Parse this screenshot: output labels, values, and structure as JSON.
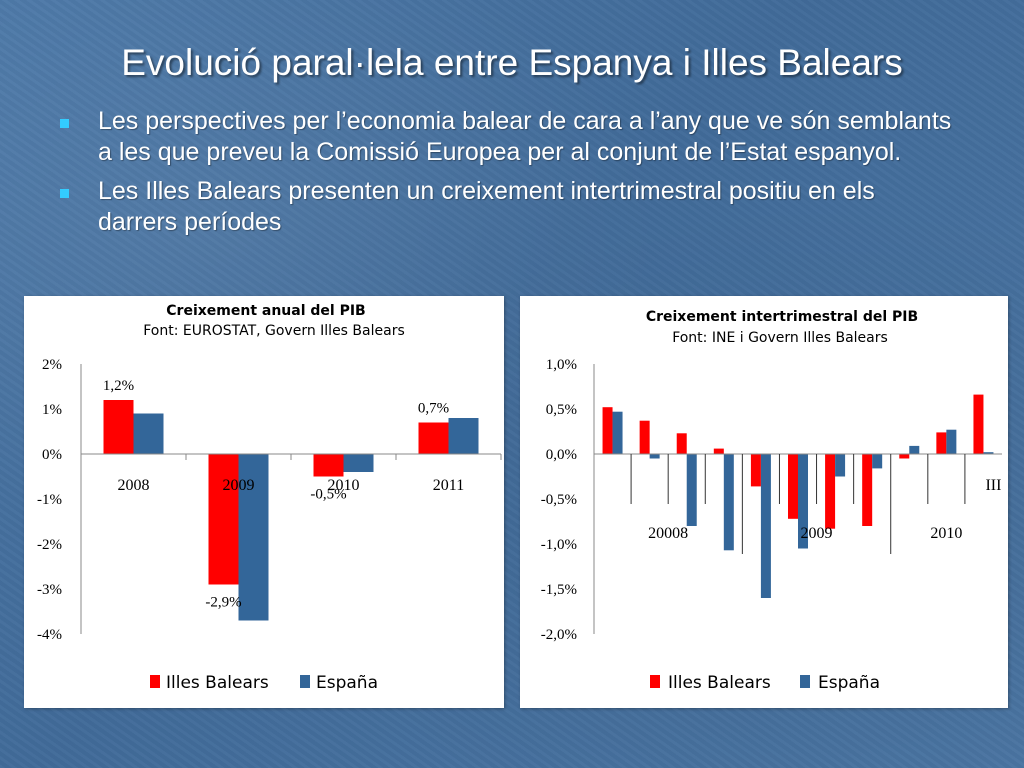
{
  "slide": {
    "title": "Evolució paral·lela entre Espanya i Illes Balears",
    "bullets": [
      "Les perspectives per l’economia balear de cara a l’any que ve són semblants a les que preveu la Comissió Europea per al conjunt de l’Estat espanyol.",
      "Les Illes Balears presenten un creixement intertrimestral positiu en els darrers períodes"
    ],
    "colors": {
      "background": "#4a74a2",
      "text": "#ffffff",
      "bullet": "#33ccff"
    }
  },
  "chart_data": [
    {
      "type": "bar",
      "title": "Creixement anual del PIB",
      "subtitle": "Font: EUROSTAT, Govern Illes Balears",
      "categories": [
        "2008",
        "2009",
        "2010",
        "2011"
      ],
      "series": [
        {
          "name": "Illes Balears",
          "color": "#ff0000",
          "values": [
            1.2,
            -2.9,
            -0.5,
            0.7
          ]
        },
        {
          "name": "España",
          "color": "#336699",
          "values": [
            0.9,
            -3.7,
            -0.4,
            0.8
          ]
        }
      ],
      "data_labels": [
        {
          "text": "1,2%",
          "category": "2008",
          "series": "Illes Balears"
        },
        {
          "text": "-2,9%",
          "category": "2009",
          "series": "Illes Balears"
        },
        {
          "text": "-0,5%",
          "category": "2010",
          "series": "Illes Balears"
        },
        {
          "text": "0,7%",
          "category": "2011",
          "series": "Illes Balears"
        }
      ],
      "ylim": [
        -4,
        2
      ],
      "yticks": [
        2,
        1,
        0,
        -1,
        -2,
        -3,
        -4
      ],
      "ytick_labels": [
        "2%",
        "1%",
        "0%",
        "-1%",
        "-2%",
        "-3%",
        "-4%"
      ],
      "legend_position": "bottom",
      "grid": false
    },
    {
      "type": "bar",
      "title": "Creixement intertrimestral del PIB",
      "subtitle": "Font: INE i Govern Illes Balears",
      "periods": 11,
      "group_labels": [
        {
          "text": "20008",
          "center_period": 1.5
        },
        {
          "text": "2009",
          "center_period": 5.5
        },
        {
          "text": "2010",
          "center_period": 9
        },
        {
          "text": "III",
          "center_period": 10
        }
      ],
      "series": [
        {
          "name": "Illes Balears",
          "color": "#ff0000",
          "values": [
            0.52,
            0.37,
            0.23,
            0.06,
            -0.36,
            -0.72,
            -0.83,
            -0.8,
            -0.05,
            0.24,
            0.66
          ]
        },
        {
          "name": "España",
          "color": "#336699",
          "values": [
            0.47,
            -0.05,
            -0.8,
            -1.07,
            -1.6,
            -1.05,
            -0.25,
            -0.16,
            0.09,
            0.27,
            0.02
          ]
        }
      ],
      "ylim": [
        -2.0,
        1.0
      ],
      "yticks": [
        1.0,
        0.5,
        0.0,
        -0.5,
        -1.0,
        -1.5,
        -2.0
      ],
      "ytick_labels": [
        "1,0%",
        "0,5%",
        "0,0%",
        "-0,5%",
        "-1,0%",
        "-1,5%",
        "-2,0%"
      ],
      "legend_position": "bottom",
      "grid": false
    }
  ]
}
